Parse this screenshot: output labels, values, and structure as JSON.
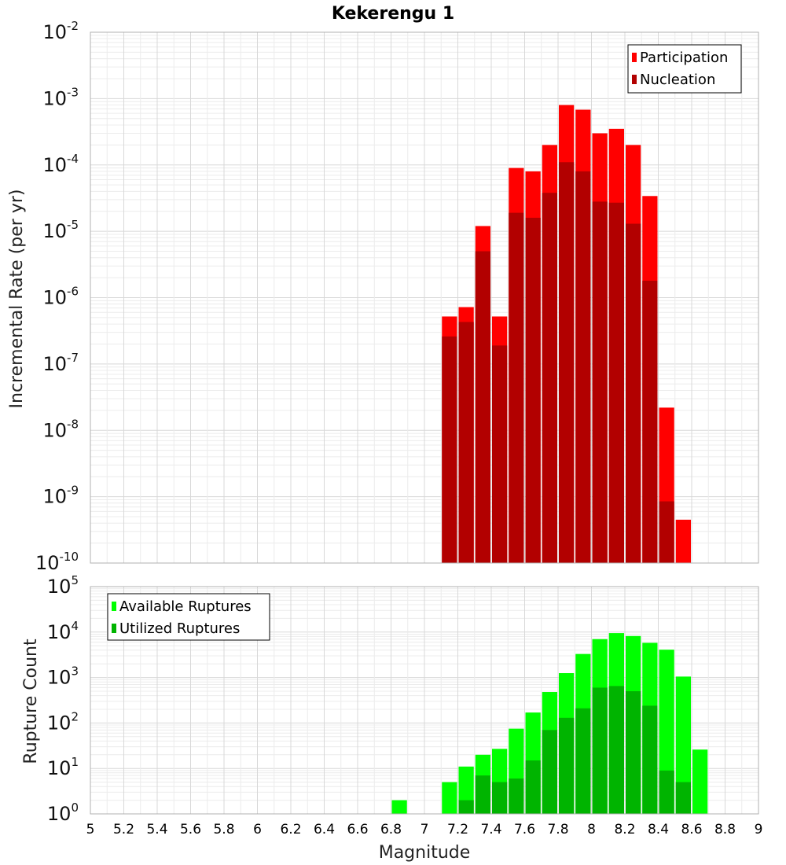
{
  "chart_data": [
    {
      "type": "bar",
      "title": "Kekerengu 1",
      "ylabel": "Incremental Rate (per yr)",
      "xlabel": "",
      "scale": "log",
      "xlim": [
        5,
        9
      ],
      "ylim_exp": [
        -10,
        -2
      ],
      "bin_width": 0.1,
      "legend_position": "top-right",
      "series": [
        {
          "name": "Participation",
          "color": "#ff0000",
          "points": [
            {
              "x": 7.15,
              "y": 5.2e-07
            },
            {
              "x": 7.25,
              "y": 7.2e-07
            },
            {
              "x": 7.35,
              "y": 1.2e-05
            },
            {
              "x": 7.45,
              "y": 5.2e-07
            },
            {
              "x": 7.55,
              "y": 9e-05
            },
            {
              "x": 7.65,
              "y": 8e-05
            },
            {
              "x": 7.75,
              "y": 0.0002
            },
            {
              "x": 7.85,
              "y": 0.0008
            },
            {
              "x": 7.95,
              "y": 0.00068
            },
            {
              "x": 8.05,
              "y": 0.0003
            },
            {
              "x": 8.15,
              "y": 0.00035
            },
            {
              "x": 8.25,
              "y": 0.0002
            },
            {
              "x": 8.35,
              "y": 3.4e-05
            },
            {
              "x": 8.45,
              "y": 2.2e-08
            },
            {
              "x": 8.55,
              "y": 4.5e-10
            }
          ]
        },
        {
          "name": "Nucleation",
          "color": "#b20000",
          "points": [
            {
              "x": 7.15,
              "y": 2.6e-07
            },
            {
              "x": 7.25,
              "y": 4.3e-07
            },
            {
              "x": 7.35,
              "y": 5e-06
            },
            {
              "x": 7.45,
              "y": 1.9e-07
            },
            {
              "x": 7.55,
              "y": 1.9e-05
            },
            {
              "x": 7.65,
              "y": 1.6e-05
            },
            {
              "x": 7.75,
              "y": 3.8e-05
            },
            {
              "x": 7.85,
              "y": 0.00011
            },
            {
              "x": 7.95,
              "y": 8e-05
            },
            {
              "x": 8.05,
              "y": 2.8e-05
            },
            {
              "x": 8.15,
              "y": 2.7e-05
            },
            {
              "x": 8.25,
              "y": 1.3e-05
            },
            {
              "x": 8.35,
              "y": 1.8e-06
            },
            {
              "x": 8.45,
              "y": 8.5e-10
            }
          ]
        }
      ]
    },
    {
      "type": "bar",
      "title": "",
      "ylabel": "Rupture Count",
      "xlabel": "Magnitude",
      "scale": "log",
      "xlim": [
        5,
        9
      ],
      "ylim_exp": [
        0,
        5
      ],
      "bin_width": 0.1,
      "legend_position": "top-left",
      "x_ticks": [
        "5",
        "5.2",
        "5.4",
        "5.6",
        "5.8",
        "6",
        "6.2",
        "6.4",
        "6.6",
        "6.8",
        "7",
        "7.2",
        "7.4",
        "7.6",
        "7.8",
        "8",
        "8.2",
        "8.4",
        "8.6",
        "8.8",
        "9"
      ],
      "series": [
        {
          "name": "Available Ruptures",
          "color": "#00ff00",
          "points": [
            {
              "x": 6.85,
              "y": 2
            },
            {
              "x": 7.05,
              "y": 1
            },
            {
              "x": 7.15,
              "y": 5
            },
            {
              "x": 7.25,
              "y": 11
            },
            {
              "x": 7.35,
              "y": 20
            },
            {
              "x": 7.45,
              "y": 27
            },
            {
              "x": 7.55,
              "y": 75
            },
            {
              "x": 7.65,
              "y": 170
            },
            {
              "x": 7.75,
              "y": 480
            },
            {
              "x": 7.85,
              "y": 1250
            },
            {
              "x": 7.95,
              "y": 3300
            },
            {
              "x": 8.05,
              "y": 7000
            },
            {
              "x": 8.15,
              "y": 9500
            },
            {
              "x": 8.25,
              "y": 8200
            },
            {
              "x": 8.35,
              "y": 5800
            },
            {
              "x": 8.45,
              "y": 4100
            },
            {
              "x": 8.55,
              "y": 1050
            },
            {
              "x": 8.65,
              "y": 26
            }
          ]
        },
        {
          "name": "Utilized Ruptures",
          "color": "#00b400",
          "points": [
            {
              "x": 7.15,
              "y": 1
            },
            {
              "x": 7.25,
              "y": 2
            },
            {
              "x": 7.35,
              "y": 7
            },
            {
              "x": 7.45,
              "y": 5
            },
            {
              "x": 7.55,
              "y": 6
            },
            {
              "x": 7.65,
              "y": 15
            },
            {
              "x": 7.75,
              "y": 70
            },
            {
              "x": 7.85,
              "y": 130
            },
            {
              "x": 7.95,
              "y": 210
            },
            {
              "x": 8.05,
              "y": 600
            },
            {
              "x": 8.15,
              "y": 650
            },
            {
              "x": 8.25,
              "y": 500
            },
            {
              "x": 8.35,
              "y": 240
            },
            {
              "x": 8.45,
              "y": 9
            },
            {
              "x": 8.55,
              "y": 5
            }
          ]
        }
      ]
    }
  ]
}
